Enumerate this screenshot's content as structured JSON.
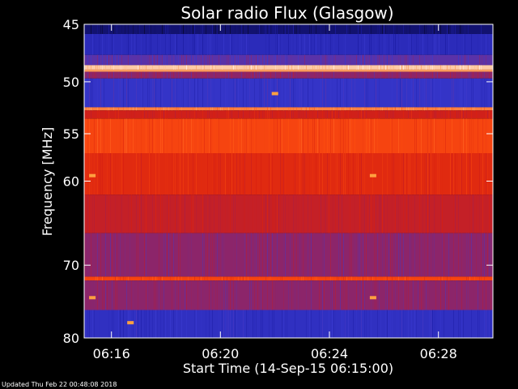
{
  "chart_data": {
    "type": "heatmap",
    "title": "Solar radio Flux (Glasgow)",
    "xlabel": "Start Time (14-Sep-15 06:15:00)",
    "ylabel": "Frequency [MHz]",
    "x_ticks": [
      "06:16",
      "06:20",
      "06:24",
      "06:28"
    ],
    "x_tick_minutes": [
      1,
      5,
      9,
      13
    ],
    "xlim_minutes": [
      0,
      15
    ],
    "y_ticks": [
      45,
      50,
      55,
      60,
      70,
      80
    ],
    "ylim": [
      45,
      80
    ],
    "y_scale": "log",
    "colormap": [
      "#000000",
      "#1a1aa0",
      "#3a3ad0",
      "#a02050",
      "#d82010",
      "#ff5010",
      "#ffa060",
      "#ffffff"
    ],
    "bands": [
      {
        "f_low": 44.6,
        "f_high": 45.8,
        "level": 0.1
      },
      {
        "f_low": 45.8,
        "f_high": 47.6,
        "level": 0.22
      },
      {
        "f_low": 47.6,
        "f_high": 48.5,
        "level": 0.33
      },
      {
        "f_low": 48.5,
        "f_high": 48.9,
        "level": 0.92
      },
      {
        "f_low": 48.9,
        "f_high": 49.1,
        "level": 0.85
      },
      {
        "f_low": 49.1,
        "f_high": 49.7,
        "level": 0.4
      },
      {
        "f_low": 49.7,
        "f_high": 52.4,
        "level": 0.26
      },
      {
        "f_low": 52.4,
        "f_high": 52.7,
        "level": 0.8
      },
      {
        "f_low": 52.7,
        "f_high": 53.5,
        "level": 0.55
      },
      {
        "f_low": 53.5,
        "f_high": 57.0,
        "level": 0.68
      },
      {
        "f_low": 57.0,
        "f_high": 61.5,
        "level": 0.6
      },
      {
        "f_low": 61.5,
        "f_high": 66.0,
        "level": 0.52
      },
      {
        "f_low": 66.0,
        "f_high": 71.5,
        "level": 0.4
      },
      {
        "f_low": 71.5,
        "f_high": 72.0,
        "level": 0.68
      },
      {
        "f_low": 72.0,
        "f_high": 76.0,
        "level": 0.4
      },
      {
        "f_low": 76.0,
        "f_high": 80.5,
        "level": 0.24
      }
    ],
    "hot_spots": [
      {
        "t_min": 0.3,
        "f": 59.4
      },
      {
        "t_min": 10.6,
        "f": 59.4
      },
      {
        "t_min": 7.0,
        "f": 51.1
      },
      {
        "t_min": 1.7,
        "f": 77.8
      },
      {
        "t_min": 0.3,
        "f": 74.3
      },
      {
        "t_min": 10.6,
        "f": 74.3
      }
    ]
  },
  "footer": {
    "updated": "Updated Thu Feb 22 00:48:08 2018"
  }
}
